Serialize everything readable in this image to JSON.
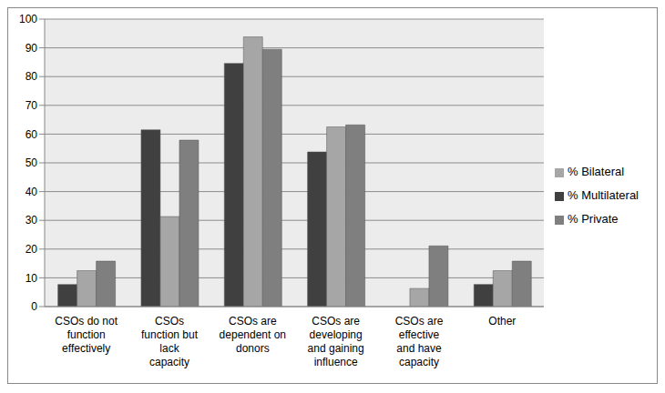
{
  "chart_data": {
    "type": "bar",
    "categories": [
      "CSOs do not function effectively",
      "CSOs function but lack capacity",
      "CSOs are dependent on donors",
      "CSOs are developing and gaining influence",
      "CSOs are effective and have capacity",
      "Other"
    ],
    "series": [
      {
        "name": "% Multilateral",
        "color": "#404040",
        "values": [
          7.7,
          61.5,
          84.6,
          53.8,
          0,
          7.7
        ]
      },
      {
        "name": "% Bilateral",
        "color": "#a6a6a6",
        "values": [
          12.5,
          31.3,
          93.8,
          62.5,
          6.3,
          12.5
        ]
      },
      {
        "name": "% Private",
        "color": "#7f7f7f",
        "values": [
          15.8,
          57.9,
          89.5,
          63.2,
          21.1,
          15.8
        ]
      }
    ],
    "ylim": [
      0,
      100
    ],
    "yticks": [
      0,
      10,
      20,
      30,
      40,
      50,
      60,
      70,
      80,
      90,
      100
    ],
    "grid": true,
    "legend": "right"
  }
}
